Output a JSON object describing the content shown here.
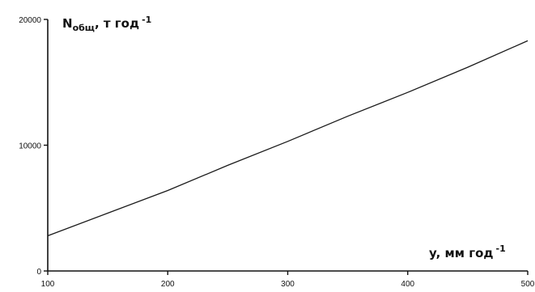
{
  "chart_data": {
    "type": "line",
    "ylabel": {
      "main": "N",
      "sub": "общ",
      "rest": ", т год",
      "sup": "-1"
    },
    "xlabel": {
      "main": "y, мм год",
      "sup": "-1"
    },
    "xlim": [
      100,
      500
    ],
    "ylim": [
      0,
      20000
    ],
    "xticks": [
      100,
      200,
      300,
      400,
      500
    ],
    "yticks": [
      0,
      10000,
      20000
    ],
    "grid": false,
    "series": [
      {
        "color": "#1a1a1a",
        "x": [
          100,
          150,
          200,
          250,
          300,
          350,
          400,
          450,
          500
        ],
        "y": [
          2800,
          4600,
          6400,
          8400,
          10300,
          12300,
          14200,
          16200,
          18300
        ]
      }
    ]
  }
}
